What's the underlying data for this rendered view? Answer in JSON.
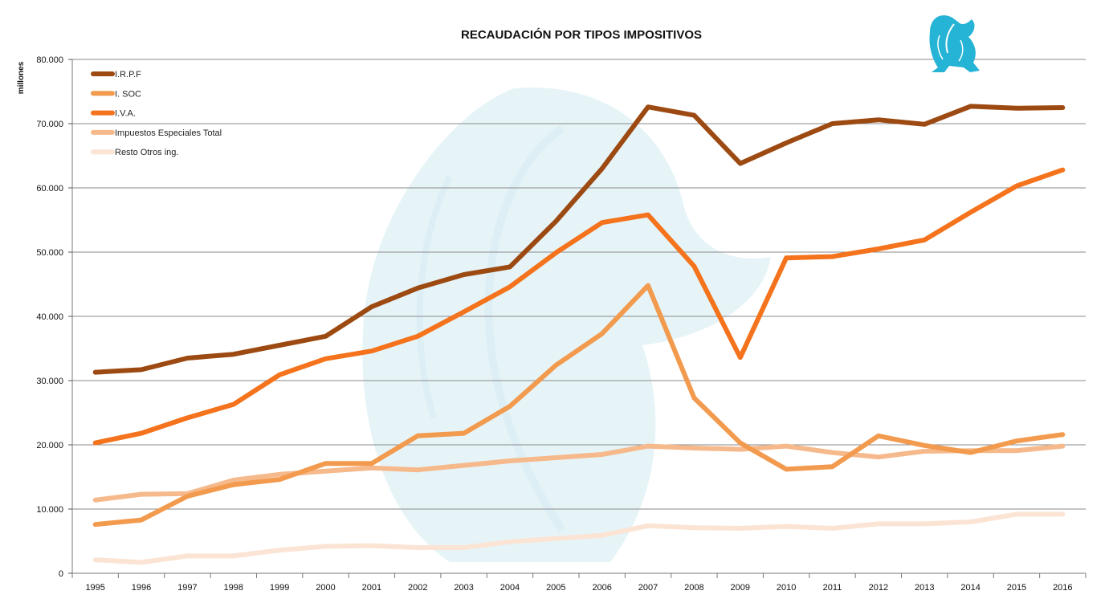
{
  "chart_data": {
    "type": "line",
    "title": "RECAUDACIÓN POR TIPOS IMPOSITIVOS",
    "ylabel": "millones",
    "xlabel": "",
    "ylim": [
      0,
      80000
    ],
    "y_ticks": [
      "0",
      "10.000",
      "20.000",
      "30.000",
      "40.000",
      "50.000",
      "60.000",
      "70.000",
      "80.000"
    ],
    "categories": [
      "1995",
      "1996",
      "1997",
      "1998",
      "1999",
      "2000",
      "2001",
      "2002",
      "2003",
      "2004",
      "2005",
      "2006",
      "2007",
      "2008",
      "2009",
      "2010",
      "2011",
      "2012",
      "2013",
      "2014",
      "2015",
      "2016"
    ],
    "grid": "horizontal",
    "legend_position": "top-left",
    "series": [
      {
        "name": "I.R.P.F",
        "color": "#9C4A12",
        "values": [
          31300,
          31700,
          33500,
          34100,
          35500,
          36900,
          41500,
          44400,
          46500,
          47700,
          54800,
          63000,
          72600,
          71300,
          63800,
          67000,
          70000,
          70600,
          69900,
          72700,
          72400,
          72500
        ]
      },
      {
        "name": "I. SOC",
        "color": "#F29A4E",
        "values": [
          7600,
          8300,
          12000,
          13800,
          14600,
          17100,
          17100,
          21400,
          21800,
          26000,
          32400,
          37300,
          44800,
          27300,
          20300,
          16200,
          16600,
          21400,
          19900,
          18800,
          20600,
          21600
        ]
      },
      {
        "name": "I.V.A.",
        "color": "#F4731C",
        "values": [
          20300,
          21800,
          24200,
          26300,
          30900,
          33400,
          34600,
          36900,
          40700,
          44600,
          49900,
          54600,
          55800,
          47800,
          33600,
          49100,
          49300,
          50500,
          51900,
          56200,
          60300,
          62800
        ]
      },
      {
        "name": "Impuestos Especiales Total",
        "color": "#F6B98B",
        "values": [
          11400,
          12300,
          12400,
          14500,
          15400,
          15900,
          16400,
          16100,
          16800,
          17500,
          18000,
          18500,
          19800,
          19500,
          19300,
          19800,
          18800,
          18100,
          19000,
          19100,
          19100,
          19800
        ]
      },
      {
        "name": "Resto Otros ing.",
        "color": "#FBE4D4",
        "values": [
          2100,
          1700,
          2700,
          2700,
          3600,
          4200,
          4300,
          4000,
          4000,
          4900,
          5400,
          5900,
          7400,
          7100,
          7000,
          7300,
          7000,
          7700,
          7700,
          8000,
          9200,
          9200
        ]
      }
    ]
  },
  "decor": {
    "logo_icon": "winged-griffin-logo",
    "logo_color": "#25B3D6",
    "watermark_icon": "griffin-watermark",
    "watermark_color": "#E6F4F8"
  }
}
